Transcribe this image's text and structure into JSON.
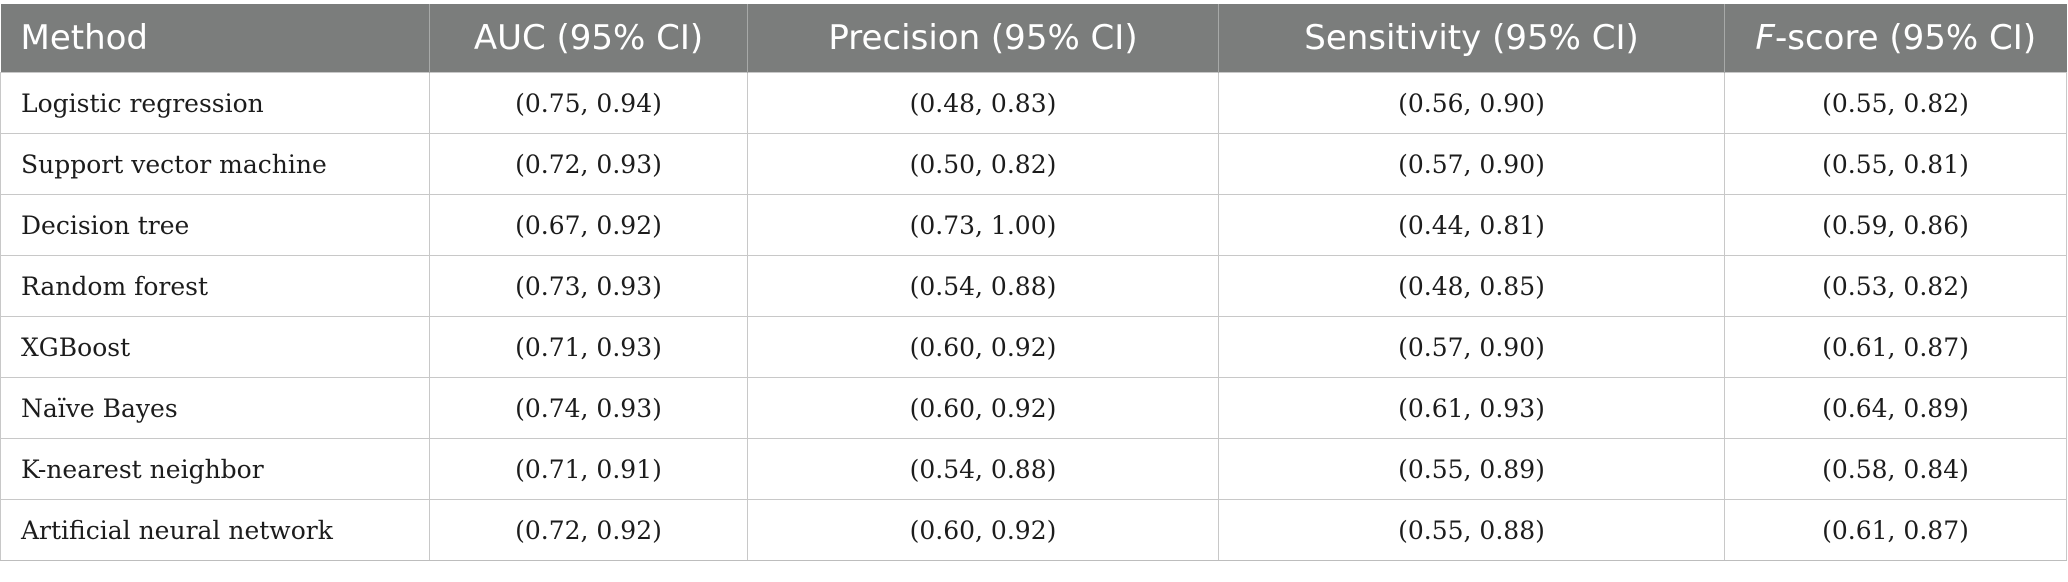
{
  "table": {
    "headers": [
      {
        "label": "Method"
      },
      {
        "label": "AUC (95% CI)"
      },
      {
        "label": "Precision (95% CI)"
      },
      {
        "label": "Sensitivity (95% CI)"
      },
      {
        "label_italic": "F",
        "label": "-score (95% CI)"
      }
    ],
    "rows": [
      {
        "method": "Logistic regression",
        "auc": "(0.75, 0.94)",
        "precision": "(0.48, 0.83)",
        "sensitivity": "(0.56, 0.90)",
        "fscore": "(0.55, 0.82)"
      },
      {
        "method": "Support vector machine",
        "auc": "(0.72, 0.93)",
        "precision": "(0.50, 0.82)",
        "sensitivity": "(0.57, 0.90)",
        "fscore": "(0.55, 0.81)"
      },
      {
        "method": "Decision tree",
        "auc": "(0.67, 0.92)",
        "precision": "(0.73, 1.00)",
        "sensitivity": "(0.44, 0.81)",
        "fscore": "(0.59, 0.86)"
      },
      {
        "method": "Random forest",
        "auc": "(0.73, 0.93)",
        "precision": "(0.54, 0.88)",
        "sensitivity": "(0.48, 0.85)",
        "fscore": "(0.53, 0.82)"
      },
      {
        "method": "XGBoost",
        "auc": "(0.71, 0.93)",
        "precision": "(0.60, 0.92)",
        "sensitivity": "(0.57, 0.90)",
        "fscore": "(0.61, 0.87)"
      },
      {
        "method": "Naïve Bayes",
        "auc": "(0.74, 0.93)",
        "precision": "(0.60, 0.92)",
        "sensitivity": "(0.61, 0.93)",
        "fscore": "(0.64, 0.89)"
      },
      {
        "method": "K-nearest neighbor",
        "auc": "(0.71, 0.91)",
        "precision": "(0.54, 0.88)",
        "sensitivity": "(0.55, 0.89)",
        "fscore": "(0.58, 0.84)"
      },
      {
        "method": "Artificial neural network",
        "auc": "(0.72, 0.92)",
        "precision": "(0.60, 0.92)",
        "sensitivity": "(0.55, 0.88)",
        "fscore": "(0.61, 0.87)"
      }
    ]
  },
  "colors": {
    "header_bg": "#7b7d7c",
    "header_text": "#ffffff",
    "grid": "#c8c8c8"
  }
}
